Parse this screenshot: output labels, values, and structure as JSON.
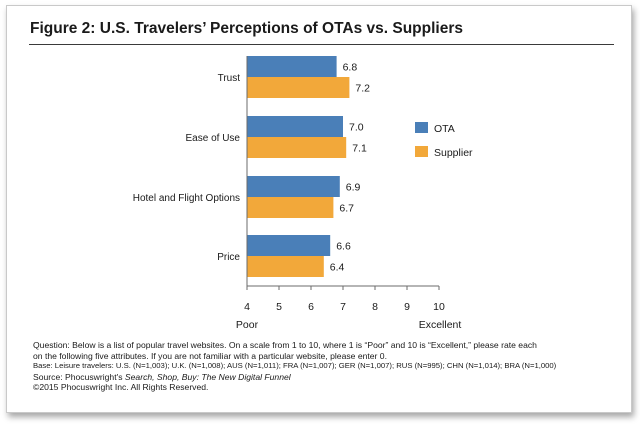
{
  "figure": {
    "title": "Figure 2: U.S. Travelers’ Perceptions of OTAs vs. Suppliers"
  },
  "chart_data": {
    "type": "bar",
    "orientation": "horizontal",
    "title": "Figure 2: U.S. Travelers’ Perceptions of OTAs vs. Suppliers",
    "categories": [
      "Trust",
      "Ease of Use",
      "Hotel and Flight Options",
      "Price"
    ],
    "series": [
      {
        "name": "OTA",
        "color": "#4a7fb8",
        "values": [
          6.8,
          7.0,
          6.9,
          6.6
        ],
        "labels": [
          "6.8",
          "7.0",
          "6.9",
          "6.6"
        ]
      },
      {
        "name": "Supplier",
        "color": "#f2a83a",
        "values": [
          7.2,
          7.1,
          6.7,
          6.4
        ],
        "labels": [
          "7.2",
          "7.1",
          "6.7",
          "6.4"
        ]
      }
    ],
    "xlim": [
      4,
      10
    ],
    "xticks": [
      "4",
      "5",
      "6",
      "7",
      "8",
      "9",
      "10"
    ],
    "x_low_label": "Poor",
    "x_high_label": "Excellent",
    "legend_position": "right",
    "grid": false
  },
  "footer": {
    "question_line1": "Question: Below is a list of popular travel websites. On a scale from 1 to 10, where 1 is “Poor” and 10 is “Excellent,” please rate each",
    "question_line2": "on the following five attributes. If you are not familiar with a particular website, please enter 0.",
    "base": "Base: Leisure travelers: U.S. (N=1,003); U.K. (N=1,008); AUS (N=1,011); FRA (N=1,007); GER (N=1,007); RUS (N=995); CHN (N=1,014); BRA (N=1,000)",
    "source_prefix": "Source: Phocuswright's",
    "source_title": "Search, Shop, Buy: The New Digital Funnel",
    "copyright": "©2015 Phocuswright Inc. All Rights Reserved."
  }
}
